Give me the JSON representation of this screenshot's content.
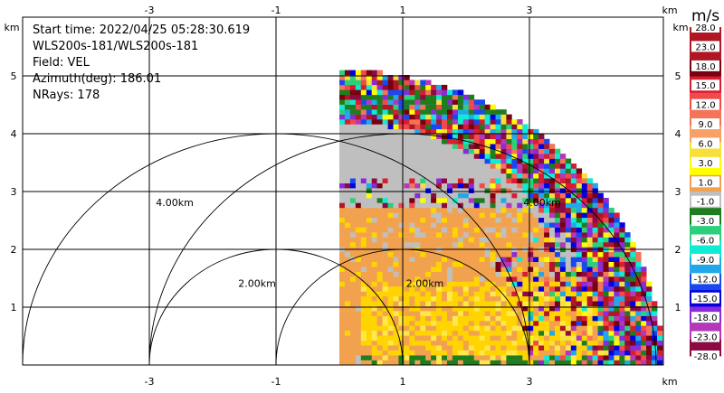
{
  "info": {
    "start_time": "Start time: 2022/04/25 05:28:30.619",
    "instrument": "WLS200s-181/WLS200s-181",
    "field": "Field: VEL",
    "azimuth": "Azimuth(deg): 186.01",
    "nrays": "NRays: 178"
  },
  "chart_data": {
    "type": "heatmap",
    "title": "",
    "field": "VEL",
    "projection": "radar PPI sector",
    "x_axis": {
      "range": [
        -5.5,
        4.2
      ],
      "ticks": [
        -3,
        -1,
        1,
        3
      ],
      "unit_label": "km"
    },
    "y_axis": {
      "range": [
        0,
        5.3
      ],
      "ticks": [
        1,
        2,
        3,
        4,
        5
      ],
      "unit_label": "km"
    },
    "range_rings": [
      {
        "center_x": -1.0,
        "radius": 2.0,
        "label": "2.00km"
      },
      {
        "center_x": -1.0,
        "radius": 4.0,
        "label": "4.00km"
      },
      {
        "center_x": 1.0,
        "radius": 2.0,
        "label": "2.00km"
      },
      {
        "center_x": 1.0,
        "radius": 4.0,
        "label": "4.00km"
      }
    ],
    "sector": {
      "origin_x": 0.0,
      "origin_y": 0.0,
      "max_range_km": 5.1,
      "azimuth_from_deg": 0,
      "azimuth_to_deg": 90
    },
    "grid": true,
    "colorbar": {
      "label": "m/s",
      "placement": "right",
      "ticks": [
        "28.0",
        "23.0",
        "18.0",
        "15.0",
        "12.0",
        "9.0",
        "6.0",
        "3.0",
        "1.0",
        "-1.0",
        "-3.0",
        "-6.0",
        "-9.0",
        "-12.0",
        "-15.0",
        "-18.0",
        "-23.0",
        "-28.0"
      ],
      "colors": [
        "#b01624",
        "#b01624",
        "#780010",
        "#d81c33",
        "#f04a4a",
        "#f47458",
        "#f8a068",
        "#f7e03a",
        "#ffff00",
        "#f2a24e",
        "#bfbfbf",
        "#1f7d1f",
        "#2cd07a",
        "#10ecd4",
        "#20a8e8",
        "#1a48ef",
        "#0000e0",
        "#8a2ad8",
        "#b438b8",
        "#8b0a44"
      ]
    }
  }
}
